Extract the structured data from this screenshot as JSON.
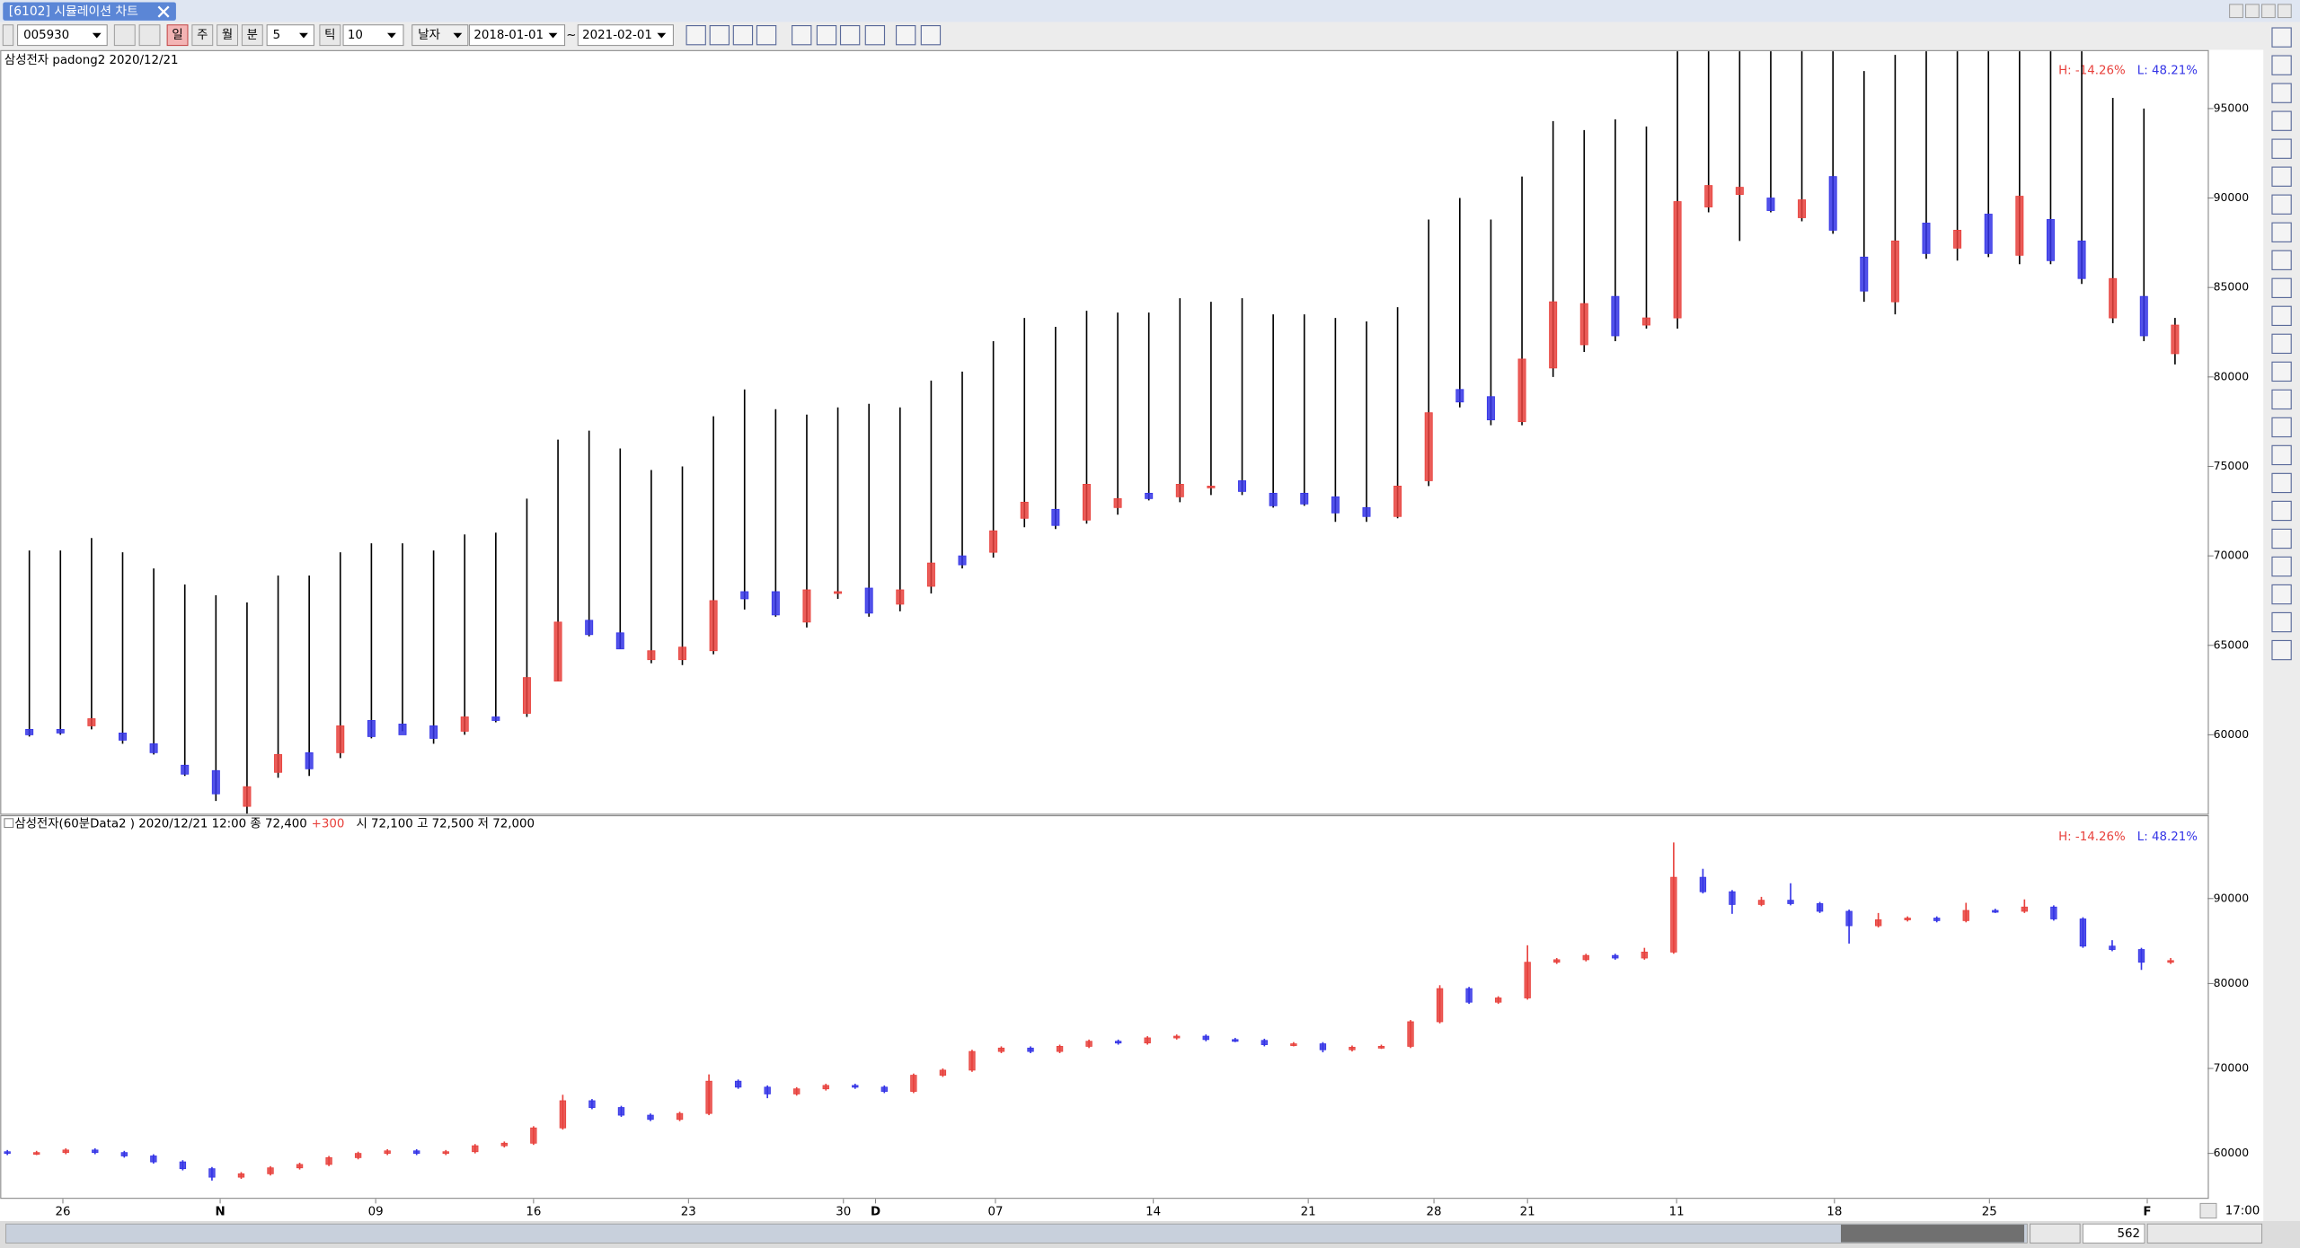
{
  "window": {
    "tab": "[6102] 시뮬레이션 차트"
  },
  "toolbar": {
    "code": "005930",
    "periods": [
      "일",
      "주",
      "월",
      "분"
    ],
    "minute": "5",
    "tick_label": "틱",
    "tick": "10",
    "date_label": "날자",
    "from": "2018-01-01",
    "range_sep": "~",
    "to": "2021-02-01"
  },
  "chart_data": [
    {
      "type": "candlestick",
      "title": "삼성전자 padong2  2020/12/21",
      "stats": {
        "high": "H: -14.26%",
        "low": "L: 48.21%"
      },
      "up_color": "#e8413c",
      "down_color": "#3434e6",
      "wick_color": "#000000",
      "ylim": [
        55600,
        98200
      ],
      "yticks": [
        60000,
        65000,
        70000,
        75000,
        80000,
        85000,
        90000,
        95000
      ],
      "candles": [
        [
          60300,
          70300,
          59900,
          60000
        ],
        [
          60300,
          70300,
          60000,
          60100
        ],
        [
          60500,
          71000,
          60300,
          60900
        ],
        [
          60100,
          70200,
          59500,
          59700
        ],
        [
          59500,
          69300,
          58900,
          59000
        ],
        [
          58300,
          68400,
          57700,
          57800
        ],
        [
          58000,
          67800,
          56300,
          56700
        ],
        [
          56000,
          67400,
          55600,
          57100
        ],
        [
          57900,
          68900,
          57600,
          58900
        ],
        [
          59000,
          68900,
          57700,
          58100
        ],
        [
          59000,
          70200,
          58700,
          60500
        ],
        [
          60800,
          70700,
          59800,
          59900
        ],
        [
          60600,
          70700,
          60200,
          60000
        ],
        [
          60500,
          70300,
          59500,
          59800
        ],
        [
          60200,
          71200,
          60000,
          61000
        ],
        [
          61000,
          71300,
          60700,
          60800
        ],
        [
          61200,
          73200,
          61000,
          63200
        ],
        [
          63000,
          76500,
          63000,
          66300
        ],
        [
          66400,
          77000,
          65500,
          65600
        ],
        [
          65700,
          76000,
          64800,
          64800
        ],
        [
          64200,
          74800,
          64000,
          64700
        ],
        [
          64200,
          75000,
          63900,
          64900
        ],
        [
          64700,
          77800,
          64500,
          67500
        ],
        [
          68000,
          79300,
          67000,
          67600
        ],
        [
          68000,
          78200,
          66600,
          66700
        ],
        [
          66300,
          77900,
          66000,
          68100
        ],
        [
          68000,
          78300,
          67600,
          68000
        ],
        [
          68200,
          78500,
          66600,
          66800
        ],
        [
          67300,
          78300,
          66900,
          68100
        ],
        [
          68300,
          79800,
          67900,
          69600
        ],
        [
          70000,
          80300,
          69300,
          69500
        ],
        [
          70200,
          82000,
          69900,
          71400
        ],
        [
          72100,
          83300,
          71600,
          73000
        ],
        [
          72600,
          82800,
          71500,
          71700
        ],
        [
          72000,
          83700,
          71800,
          74000
        ],
        [
          72700,
          83600,
          72300,
          73200
        ],
        [
          73500,
          83600,
          73100,
          73200
        ],
        [
          73300,
          84400,
          73000,
          74000
        ],
        [
          73800,
          84200,
          73400,
          73900
        ],
        [
          74200,
          84400,
          73400,
          73600
        ],
        [
          73500,
          83500,
          72700,
          72800
        ],
        [
          73500,
          83500,
          72800,
          72900
        ],
        [
          73300,
          83300,
          71900,
          72400
        ],
        [
          72700,
          83100,
          71900,
          72200
        ],
        [
          72200,
          83900,
          72100,
          73900
        ],
        [
          74200,
          88800,
          73900,
          78000
        ],
        [
          79300,
          90000,
          78300,
          78600
        ],
        [
          78900,
          88800,
          77300,
          77600
        ],
        [
          77500,
          91200,
          77300,
          81000
        ],
        [
          80500,
          94300,
          80000,
          84200
        ],
        [
          81800,
          93800,
          81400,
          84100
        ],
        [
          84500,
          94400,
          82000,
          82300
        ],
        [
          82900,
          94000,
          82700,
          83300
        ],
        [
          83300,
          98200,
          82700,
          89800
        ],
        [
          89500,
          98200,
          89200,
          90700
        ],
        [
          90200,
          98200,
          87600,
          90600
        ],
        [
          90000,
          98200,
          89200,
          89300
        ],
        [
          88900,
          98200,
          88700,
          89900
        ],
        [
          91200,
          98200,
          88000,
          88200
        ],
        [
          86700,
          97100,
          84200,
          84800
        ],
        [
          84200,
          98000,
          83500,
          87600
        ],
        [
          88600,
          98200,
          86600,
          86900
        ],
        [
          87200,
          98200,
          86500,
          88200
        ],
        [
          89100,
          98200,
          86700,
          86900
        ],
        [
          86800,
          98200,
          86300,
          90100
        ],
        [
          88800,
          98200,
          86300,
          86500
        ],
        [
          87600,
          98200,
          85200,
          85500
        ],
        [
          83300,
          95600,
          83000,
          85500
        ],
        [
          84500,
          95000,
          82000,
          82300
        ],
        [
          81300,
          83300,
          80700,
          82900
        ]
      ]
    },
    {
      "type": "candlestick",
      "title": "삼성전자(60분Data2 ) 2020/12/21 12:00  종 72,400",
      "change": "+300",
      "detail": "시 72,100 고 72,500 저 72,000",
      "stats": {
        "high": "H: -14.26%",
        "low": "L: 48.21%"
      },
      "up_color": "#e8413c",
      "down_color": "#3434e6",
      "ylim": [
        54800,
        98800
      ],
      "yticks": [
        60000,
        70000,
        80000,
        90000
      ],
      "xticks": [
        {
          "value": 1.9,
          "label": "26"
        },
        {
          "value": 7.28,
          "label": "N"
        },
        {
          "value": 12.6,
          "label": "09"
        },
        {
          "value": 18.0,
          "label": "16"
        },
        {
          "value": 23.3,
          "label": "23"
        },
        {
          "value": 28.6,
          "label": "30"
        },
        {
          "value": 29.7,
          "label": "D"
        },
        {
          "value": 33.8,
          "label": "07"
        },
        {
          "value": 39.2,
          "label": "14"
        },
        {
          "value": 44.5,
          "label": "21"
        },
        {
          "value": 48.8,
          "label": "28"
        },
        {
          "value": 52.0,
          "label": "21"
        },
        {
          "value": 57.1,
          "label": "11"
        },
        {
          "value": 62.5,
          "label": "18"
        },
        {
          "value": 67.8,
          "label": "25"
        },
        {
          "value": 73.2,
          "label": "F"
        }
      ],
      "candles": [
        [
          60200,
          60400,
          59800,
          60000
        ],
        [
          60000,
          60300,
          59800,
          60100
        ],
        [
          60100,
          60600,
          59900,
          60400
        ],
        [
          60400,
          60600,
          59900,
          60100
        ],
        [
          60100,
          60300,
          59500,
          59700
        ],
        [
          59700,
          59900,
          58800,
          59000
        ],
        [
          59000,
          59200,
          58000,
          58200
        ],
        [
          58200,
          58400,
          56800,
          57200
        ],
        [
          57200,
          57800,
          57000,
          57600
        ],
        [
          57600,
          58500,
          57400,
          58300
        ],
        [
          58300,
          58900,
          58100,
          58700
        ],
        [
          58700,
          59700,
          58500,
          59500
        ],
        [
          59500,
          60200,
          59300,
          60000
        ],
        [
          60000,
          60500,
          59800,
          60300
        ],
        [
          60300,
          60500,
          59800,
          60000
        ],
        [
          60000,
          60400,
          59800,
          60200
        ],
        [
          60200,
          61100,
          60000,
          60900
        ],
        [
          60900,
          61400,
          60700,
          61200
        ],
        [
          61200,
          63200,
          61000,
          63000
        ],
        [
          63000,
          66900,
          62800,
          66200
        ],
        [
          66200,
          66400,
          65200,
          65400
        ],
        [
          65400,
          65600,
          64300,
          64500
        ],
        [
          64500,
          64700,
          63800,
          64000
        ],
        [
          64000,
          64900,
          63800,
          64700
        ],
        [
          64700,
          69300,
          64500,
          68500
        ],
        [
          68500,
          68700,
          67600,
          67800
        ],
        [
          67800,
          68000,
          66500,
          67000
        ],
        [
          67000,
          67800,
          66800,
          67600
        ],
        [
          67600,
          68200,
          67400,
          68000
        ],
        [
          68000,
          68200,
          67600,
          67800
        ],
        [
          67800,
          68000,
          67100,
          67300
        ],
        [
          67300,
          69400,
          67100,
          69200
        ],
        [
          69200,
          70000,
          69000,
          69800
        ],
        [
          69800,
          72200,
          69600,
          72000
        ],
        [
          72000,
          72600,
          71800,
          72400
        ],
        [
          72400,
          72600,
          71800,
          72000
        ],
        [
          72000,
          72800,
          71800,
          72600
        ],
        [
          72600,
          73400,
          72400,
          73200
        ],
        [
          73200,
          73400,
          72800,
          73000
        ],
        [
          73000,
          73800,
          72800,
          73600
        ],
        [
          73600,
          74000,
          73400,
          73800
        ],
        [
          73800,
          74000,
          73200,
          73400
        ],
        [
          73400,
          73600,
          73100,
          73300
        ],
        [
          73300,
          73500,
          72600,
          72800
        ],
        [
          72800,
          73100,
          72600,
          72900
        ],
        [
          72900,
          73100,
          71900,
          72200
        ],
        [
          72200,
          72700,
          72000,
          72500
        ],
        [
          72500,
          72800,
          72300,
          72600
        ],
        [
          72600,
          75700,
          72400,
          75500
        ],
        [
          75500,
          79800,
          75300,
          79400
        ],
        [
          79400,
          79600,
          77600,
          77800
        ],
        [
          77800,
          78500,
          77600,
          78300
        ],
        [
          78300,
          84500,
          78100,
          82500
        ],
        [
          82500,
          83000,
          82300,
          82800
        ],
        [
          82800,
          83500,
          82600,
          83300
        ],
        [
          83300,
          83500,
          82800,
          83000
        ],
        [
          83000,
          84200,
          82800,
          83700
        ],
        [
          83700,
          96600,
          83500,
          92500
        ],
        [
          92500,
          93500,
          90600,
          90800
        ],
        [
          90800,
          91000,
          88200,
          89300
        ],
        [
          89300,
          90200,
          89100,
          89800
        ],
        [
          89800,
          91800,
          89200,
          89400
        ],
        [
          89400,
          89600,
          88300,
          88500
        ],
        [
          88500,
          88700,
          84700,
          86800
        ],
        [
          86800,
          88300,
          86600,
          87500
        ],
        [
          87500,
          87900,
          87300,
          87700
        ],
        [
          87700,
          87900,
          87200,
          87400
        ],
        [
          87400,
          89500,
          87200,
          88600
        ],
        [
          88600,
          88800,
          88300,
          88500
        ],
        [
          88500,
          89900,
          88300,
          89000
        ],
        [
          89000,
          89200,
          87400,
          87600
        ],
        [
          87600,
          87800,
          84200,
          84400
        ],
        [
          84400,
          85100,
          83800,
          84000
        ],
        [
          84000,
          84200,
          81600,
          82500
        ],
        [
          82500,
          83000,
          82300,
          82700
        ]
      ]
    }
  ],
  "status": {
    "time": "17:00",
    "count": "562"
  }
}
